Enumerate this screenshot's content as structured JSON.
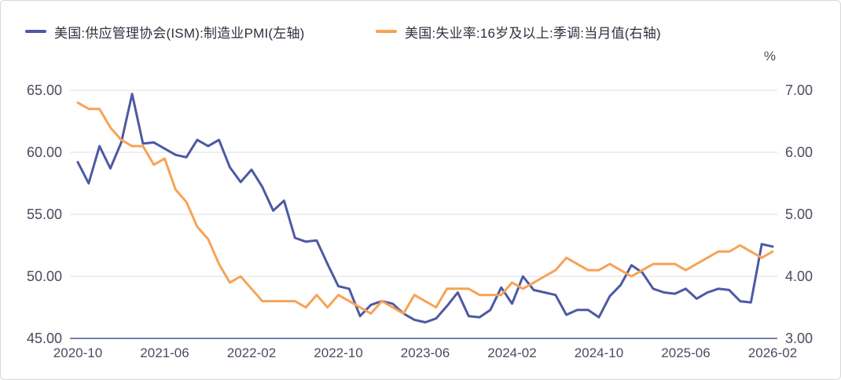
{
  "legend": [
    {
      "label": "美国:供应管理协会(ISM):制造业PMI(左轴)",
      "color": "#4d59a4"
    },
    {
      "label": "美国:失业率:16岁及以上:季调:当月值(右轴)",
      "color": "#f7a355"
    }
  ],
  "unit_label": "%",
  "colors": {
    "pmi_line": "#4d59a4",
    "unemployment_line": "#f7a355",
    "grid_line": "#e9e9f1",
    "axis_line": "#7680ab",
    "axis_text": "#4b4b5f",
    "legend_text": "#30303f"
  },
  "chart_data": {
    "type": "line",
    "x": [
      "2020-10",
      "2020-11",
      "2020-12",
      "2021-01",
      "2021-02",
      "2021-03",
      "2021-04",
      "2021-05",
      "2021-06",
      "2021-07",
      "2021-08",
      "2021-09",
      "2021-10",
      "2021-11",
      "2021-12",
      "2022-01",
      "2022-02",
      "2022-03",
      "2022-04",
      "2022-05",
      "2022-06",
      "2022-07",
      "2022-08",
      "2022-09",
      "2022-10",
      "2022-11",
      "2022-12",
      "2023-01",
      "2023-02",
      "2023-03",
      "2023-04",
      "2023-05",
      "2023-06",
      "2023-07",
      "2023-08",
      "2023-09",
      "2023-10",
      "2023-11",
      "2023-12",
      "2024-01",
      "2024-02",
      "2024-03",
      "2024-04",
      "2024-05",
      "2024-06",
      "2024-07",
      "2024-08",
      "2024-09",
      "2024-10",
      "2024-11",
      "2024-12",
      "2025-01",
      "2025-02",
      "2025-03",
      "2025-04",
      "2025-05",
      "2025-06",
      "2025-07",
      "2025-08",
      "2025-09",
      "2025-10",
      "2025-11",
      "2025-12",
      "2026-01",
      "2026-02"
    ],
    "x_tick_labels": [
      "2020-10",
      "2021-06",
      "2022-02",
      "2022-10",
      "2023-06",
      "2024-02",
      "2024-10",
      "2025-06",
      "2026-02"
    ],
    "series": [
      {
        "name": "美国:供应管理协会(ISM):制造业PMI(左轴)",
        "axis": "left",
        "color": "#4d59a4",
        "values": [
          59.2,
          57.5,
          60.5,
          58.7,
          60.8,
          64.7,
          60.7,
          60.8,
          60.3,
          59.8,
          59.6,
          61.0,
          60.5,
          61.0,
          58.8,
          57.6,
          58.6,
          57.2,
          55.3,
          56.1,
          53.1,
          52.8,
          52.9,
          51.0,
          49.2,
          49.0,
          46.8,
          47.7,
          48.0,
          47.8,
          47.0,
          46.5,
          46.3,
          46.6,
          47.6,
          48.7,
          46.8,
          46.7,
          47.3,
          49.1,
          47.8,
          50.0,
          48.9,
          48.7,
          48.5,
          46.9,
          47.3,
          47.3,
          46.7,
          48.4,
          49.3,
          50.9,
          50.3,
          49.0,
          48.7,
          48.6,
          49.0,
          48.2,
          48.7,
          49.0,
          48.9,
          48.0,
          47.9,
          52.6,
          52.4
        ]
      },
      {
        "name": "美国:失业率:16岁及以上:季调:当月值(右轴)",
        "axis": "right",
        "color": "#f7a355",
        "values": [
          6.8,
          6.7,
          6.7,
          6.4,
          6.2,
          6.1,
          6.1,
          5.8,
          5.9,
          5.4,
          5.2,
          4.8,
          4.6,
          4.2,
          3.9,
          4.0,
          3.8,
          3.6,
          3.6,
          3.6,
          3.6,
          3.5,
          3.7,
          3.5,
          3.7,
          3.6,
          3.5,
          3.4,
          3.6,
          3.5,
          3.4,
          3.7,
          3.6,
          3.5,
          3.8,
          3.8,
          3.8,
          3.7,
          3.7,
          3.7,
          3.9,
          3.8,
          3.9,
          4.0,
          4.1,
          4.3,
          4.2,
          4.1,
          4.1,
          4.2,
          4.1,
          4.0,
          4.1,
          4.2,
          4.2,
          4.2,
          4.1,
          4.2,
          4.3,
          4.4,
          4.4,
          4.5,
          4.4,
          4.3,
          4.4
        ]
      }
    ],
    "left_axis": {
      "ticks": [
        "65.00",
        "60.00",
        "55.00",
        "50.00",
        "45.00"
      ],
      "min": 45,
      "max": 65
    },
    "right_axis": {
      "ticks": [
        "7.00",
        "6.00",
        "5.00",
        "4.00",
        "3.00"
      ],
      "min": 3,
      "max": 7,
      "unit": "%"
    },
    "grid": true,
    "legend_position": "top-left"
  }
}
